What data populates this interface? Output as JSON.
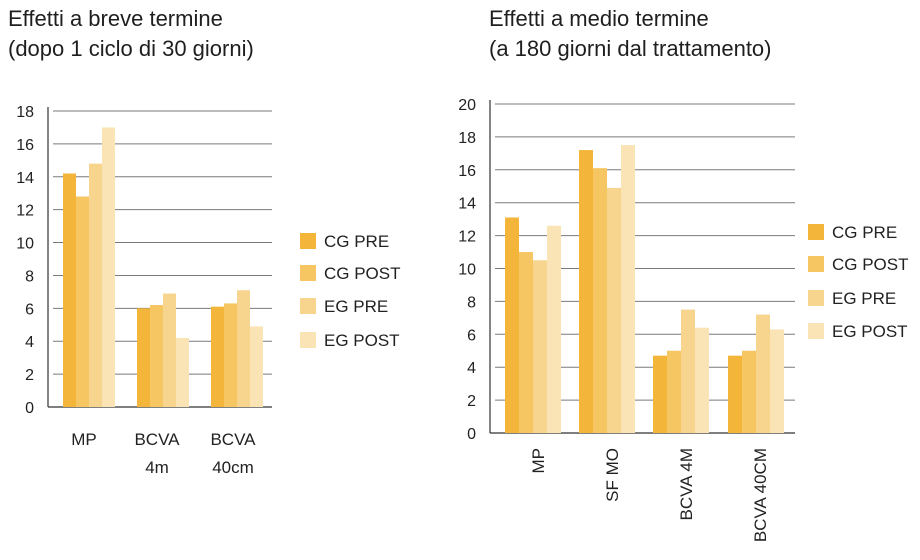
{
  "chart_data": [
    {
      "type": "bar",
      "title_lines": [
        "Effetti a breve termine",
        "(dopo 1 ciclo di 30 giorni)"
      ],
      "categories": [
        [
          "MP"
        ],
        [
          "BCVA",
          "4m"
        ],
        [
          "BCVA",
          "40cm"
        ]
      ],
      "series": [
        {
          "name": "CG PRE",
          "color": "#F3B63B",
          "values": [
            14.2,
            6.0,
            6.1
          ]
        },
        {
          "name": "CG POST",
          "color": "#F6C663",
          "values": [
            12.8,
            6.2,
            6.3
          ]
        },
        {
          "name": "EG PRE",
          "color": "#F8D58E",
          "values": [
            14.8,
            6.9,
            7.1
          ]
        },
        {
          "name": "EG POST",
          "color": "#FAE3B4",
          "values": [
            17.0,
            4.2,
            4.9
          ]
        }
      ],
      "ylim": [
        0,
        18
      ],
      "yticks": [
        "0",
        "2",
        "4",
        "6",
        "8",
        "10",
        "12",
        "14",
        "16",
        "18"
      ],
      "legend": "right",
      "grid": true
    },
    {
      "type": "bar",
      "title_lines": [
        "Effetti a medio termine",
        "(a 180 giorni dal trattamento)"
      ],
      "categories": [
        [
          "MP"
        ],
        [
          "SF MO"
        ],
        [
          "BCVA 4M"
        ],
        [
          "BCVA 40CM"
        ]
      ],
      "series": [
        {
          "name": "CG PRE",
          "color": "#F3B63B",
          "values": [
            13.1,
            17.2,
            4.7,
            4.7
          ]
        },
        {
          "name": "CG POST",
          "color": "#F6C663",
          "values": [
            11.0,
            16.1,
            5.0,
            5.0
          ]
        },
        {
          "name": "EG PRE",
          "color": "#F8D58E",
          "values": [
            10.5,
            14.9,
            7.5,
            7.2
          ]
        },
        {
          "name": "EG POST",
          "color": "#FAE3B4",
          "values": [
            12.6,
            17.5,
            6.4,
            6.3
          ]
        }
      ],
      "ylim": [
        0,
        20
      ],
      "yticks": [
        "0",
        "2",
        "4",
        "6",
        "8",
        "10",
        "12",
        "14",
        "16",
        "18",
        "20"
      ],
      "xlabel_rotation": "vertical",
      "legend": "right",
      "grid": true
    }
  ]
}
